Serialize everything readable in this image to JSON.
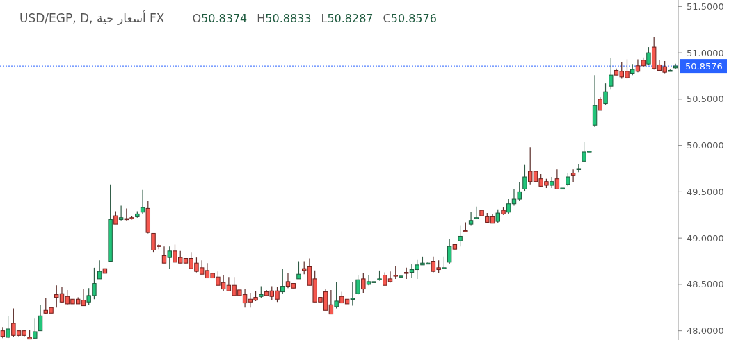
{
  "chart_data": {
    "type": "candlestick",
    "title": "USD/EGP, D, أسعار حية FX",
    "annotations": [
      "O50.8374",
      "H50.8833",
      "L50.8287",
      "C50.8576"
    ],
    "categories": [
      null,
      null,
      null,
      null,
      null,
      null,
      null,
      null,
      null,
      null,
      null,
      null,
      null,
      null,
      null,
      null,
      null,
      null,
      null,
      null,
      null,
      null,
      null,
      null,
      null,
      null,
      null,
      null,
      null,
      null,
      null,
      null,
      null,
      null,
      null,
      null,
      null,
      null,
      null,
      null,
      null,
      null,
      null,
      null,
      null,
      null,
      null,
      null,
      null,
      null,
      null,
      null,
      null,
      null,
      null,
      null,
      null,
      null,
      null,
      null,
      null,
      null,
      null,
      null,
      null,
      null,
      null,
      null,
      null,
      null,
      null,
      null,
      null,
      null,
      null,
      null,
      null,
      null,
      null,
      null,
      null,
      null,
      null,
      null,
      null,
      null,
      null,
      null,
      null,
      null,
      null,
      null,
      null,
      null,
      null,
      null,
      null,
      null,
      null,
      null,
      null,
      null,
      null,
      null,
      null,
      null,
      null,
      null,
      null,
      null,
      null,
      null,
      null,
      null,
      null,
      null,
      null,
      null,
      null,
      null,
      null,
      null,
      null,
      null,
      null,
      null
    ],
    "ohlc": [
      [
        48.0,
        48.04,
        47.92,
        47.94
      ],
      [
        47.93,
        48.16,
        47.92,
        48.02
      ],
      [
        48.08,
        48.24,
        47.93,
        47.95
      ],
      [
        48.0,
        48.0,
        47.94,
        47.95
      ],
      [
        48.0,
        48.01,
        47.94,
        47.95
      ],
      [
        47.93,
        48.01,
        47.91,
        47.91
      ],
      [
        47.92,
        48.13,
        47.91,
        47.99
      ],
      [
        48.0,
        48.28,
        48.0,
        48.16
      ],
      [
        48.22,
        48.35,
        48.18,
        48.19
      ],
      [
        48.25,
        48.25,
        48.19,
        48.19
      ],
      [
        48.39,
        48.49,
        48.25,
        48.36
      ],
      [
        48.4,
        48.47,
        48.3,
        48.31
      ],
      [
        48.37,
        48.44,
        48.28,
        48.29
      ],
      [
        48.34,
        48.34,
        48.29,
        48.29
      ],
      [
        48.34,
        48.36,
        48.29,
        48.29
      ],
      [
        48.33,
        48.45,
        48.27,
        48.27
      ],
      [
        48.31,
        48.46,
        48.28,
        48.38
      ],
      [
        48.38,
        48.68,
        48.34,
        48.51
      ],
      [
        48.56,
        48.76,
        48.56,
        48.64
      ],
      [
        48.67,
        48.67,
        48.62,
        48.62
      ],
      [
        48.75,
        49.58,
        48.74,
        49.2
      ],
      [
        49.24,
        49.29,
        49.15,
        49.15
      ],
      [
        49.2,
        49.35,
        49.19,
        49.22
      ],
      [
        49.21,
        49.32,
        49.19,
        49.2
      ],
      [
        49.22,
        49.24,
        49.2,
        49.21
      ],
      [
        49.23,
        49.29,
        49.22,
        49.26
      ],
      [
        49.28,
        49.52,
        49.26,
        49.33
      ],
      [
        49.32,
        49.4,
        49.05,
        49.06
      ],
      [
        49.05,
        49.05,
        48.85,
        48.87
      ],
      [
        48.92,
        48.94,
        48.88,
        48.91
      ],
      [
        48.81,
        48.91,
        48.73,
        48.73
      ],
      [
        48.79,
        48.91,
        48.67,
        48.86
      ],
      [
        48.86,
        48.93,
        48.74,
        48.74
      ],
      [
        48.79,
        48.86,
        48.73,
        48.73
      ],
      [
        48.78,
        48.78,
        48.73,
        48.73
      ],
      [
        48.78,
        48.85,
        48.67,
        48.67
      ],
      [
        48.73,
        48.79,
        48.63,
        48.64
      ],
      [
        48.68,
        48.76,
        48.61,
        48.61
      ],
      [
        48.65,
        48.73,
        48.57,
        48.57
      ],
      [
        48.62,
        48.62,
        48.57,
        48.57
      ],
      [
        48.58,
        48.64,
        48.49,
        48.49
      ],
      [
        48.52,
        48.6,
        48.43,
        48.45
      ],
      [
        48.49,
        48.58,
        48.43,
        48.43
      ],
      [
        48.49,
        48.58,
        48.38,
        48.38
      ],
      [
        48.44,
        48.44,
        48.38,
        48.38
      ],
      [
        48.39,
        48.45,
        48.25,
        48.3
      ],
      [
        48.34,
        48.41,
        48.25,
        48.31
      ],
      [
        48.36,
        48.43,
        48.32,
        48.33
      ],
      [
        48.37,
        48.48,
        48.35,
        48.39
      ],
      [
        48.42,
        48.44,
        48.38,
        48.38
      ],
      [
        48.43,
        48.48,
        48.33,
        48.37
      ],
      [
        48.43,
        48.47,
        48.31,
        48.34
      ],
      [
        48.42,
        48.67,
        48.4,
        48.48
      ],
      [
        48.53,
        48.62,
        48.46,
        48.48
      ],
      [
        48.51,
        48.51,
        48.46,
        48.46
      ],
      [
        48.56,
        48.75,
        48.56,
        48.61
      ],
      [
        48.67,
        48.75,
        48.61,
        48.65
      ],
      [
        48.69,
        48.78,
        48.49,
        48.49
      ],
      [
        48.56,
        48.65,
        48.31,
        48.31
      ],
      [
        48.36,
        48.36,
        48.31,
        48.31
      ],
      [
        48.42,
        48.45,
        48.22,
        48.22
      ],
      [
        48.28,
        48.44,
        48.18,
        48.18
      ],
      [
        48.26,
        48.53,
        48.24,
        48.32
      ],
      [
        48.37,
        48.42,
        48.3,
        48.3
      ],
      [
        48.34,
        48.34,
        48.29,
        48.29
      ],
      [
        48.34,
        48.53,
        48.27,
        48.35
      ],
      [
        48.4,
        48.6,
        48.39,
        48.55
      ],
      [
        48.56,
        48.62,
        48.41,
        48.45
      ],
      [
        48.5,
        48.6,
        48.49,
        48.53
      ],
      [
        48.52,
        48.53,
        48.52,
        48.53
      ],
      [
        48.55,
        48.65,
        48.54,
        48.56
      ],
      [
        48.6,
        48.63,
        48.49,
        48.49
      ],
      [
        48.56,
        48.64,
        48.52,
        48.53
      ],
      [
        48.6,
        48.7,
        48.56,
        48.59
      ],
      [
        48.59,
        48.6,
        48.58,
        48.59
      ],
      [
        48.63,
        48.68,
        48.56,
        48.62
      ],
      [
        48.63,
        48.72,
        48.57,
        48.66
      ],
      [
        48.66,
        48.77,
        48.56,
        48.71
      ],
      [
        48.71,
        48.8,
        48.71,
        48.73
      ],
      [
        48.73,
        48.74,
        48.72,
        48.73
      ],
      [
        48.75,
        48.8,
        48.63,
        48.64
      ],
      [
        48.68,
        48.76,
        48.62,
        48.66
      ],
      [
        48.68,
        48.8,
        48.68,
        48.68
      ],
      [
        48.74,
        48.99,
        48.72,
        48.91
      ],
      [
        48.93,
        48.93,
        48.88,
        48.88
      ],
      [
        48.97,
        49.14,
        48.91,
        49.02
      ],
      [
        49.08,
        49.17,
        49.06,
        49.07
      ],
      [
        49.15,
        49.28,
        49.14,
        49.19
      ],
      [
        49.22,
        49.34,
        49.21,
        49.22
      ],
      [
        49.3,
        49.3,
        49.24,
        49.24
      ],
      [
        49.23,
        49.27,
        49.16,
        49.17
      ],
      [
        49.23,
        49.26,
        49.16,
        49.16
      ],
      [
        49.18,
        49.31,
        49.16,
        49.27
      ],
      [
        49.3,
        49.33,
        49.25,
        49.26
      ],
      [
        49.28,
        49.42,
        49.26,
        49.37
      ],
      [
        49.37,
        49.53,
        49.35,
        49.42
      ],
      [
        49.42,
        49.6,
        49.4,
        49.5
      ],
      [
        49.53,
        49.79,
        49.51,
        49.66
      ],
      [
        49.72,
        49.98,
        49.58,
        49.61
      ],
      [
        49.72,
        49.72,
        49.61,
        49.61
      ],
      [
        49.64,
        49.69,
        49.55,
        49.56
      ],
      [
        49.61,
        49.64,
        49.54,
        49.57
      ],
      [
        49.57,
        49.66,
        49.54,
        49.61
      ],
      [
        49.64,
        49.74,
        49.53,
        49.53
      ],
      [
        49.53,
        49.54,
        49.53,
        49.54
      ],
      [
        49.58,
        49.7,
        49.56,
        49.66
      ],
      [
        49.7,
        49.74,
        49.6,
        49.68
      ],
      [
        49.74,
        49.8,
        49.71,
        49.75
      ],
      [
        49.83,
        50.04,
        49.82,
        49.93
      ],
      [
        49.93,
        49.94,
        49.93,
        49.94
      ],
      [
        50.22,
        50.76,
        50.2,
        50.43
      ],
      [
        50.5,
        50.52,
        50.38,
        50.38
      ],
      [
        50.45,
        50.67,
        50.44,
        50.58
      ],
      [
        50.64,
        50.94,
        50.61,
        50.76
      ],
      [
        50.81,
        50.83,
        50.76,
        50.76
      ],
      [
        50.8,
        50.9,
        50.72,
        50.74
      ],
      [
        50.8,
        50.93,
        50.72,
        50.73
      ],
      [
        50.78,
        50.88,
        50.76,
        50.82
      ],
      [
        50.86,
        50.93,
        50.79,
        50.8
      ],
      [
        50.92,
        50.95,
        50.85,
        50.86
      ],
      [
        50.88,
        51.06,
        50.87,
        51.0
      ],
      [
        51.06,
        51.17,
        50.82,
        50.83
      ],
      [
        50.87,
        50.92,
        50.8,
        50.81
      ],
      [
        50.85,
        50.91,
        50.78,
        50.79
      ],
      [
        50.81,
        50.82,
        50.8,
        50.81
      ],
      [
        50.8374,
        50.8833,
        50.8287,
        50.8576
      ]
    ],
    "ylim": [
      47.9,
      51.57
    ],
    "yticks": [
      {
        "value": 48,
        "label": "48.0000"
      },
      {
        "value": 48.5,
        "label": "48.5000"
      },
      {
        "value": 49,
        "label": "49.0000"
      },
      {
        "value": 49.5,
        "label": "49.5000"
      },
      {
        "value": 50,
        "label": "50.0000"
      },
      {
        "value": 50.5,
        "label": "50.5000"
      },
      {
        "value": 51,
        "label": "51.0000"
      },
      {
        "value": 51.5,
        "label": "51.5000"
      }
    ],
    "ref_lines": [
      {
        "axis": "y",
        "value": 50.8576,
        "label": "50.8576",
        "color": "#2962ff",
        "line_style": "dotted"
      }
    ],
    "tick_labels": "y"
  }
}
